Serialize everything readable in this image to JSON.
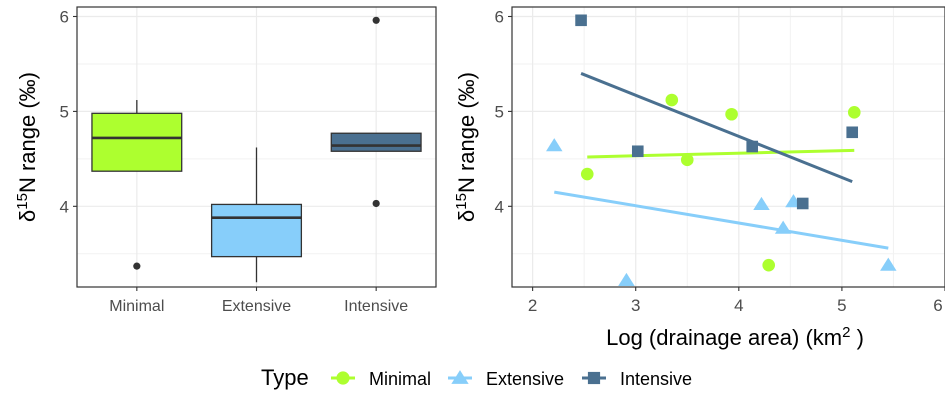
{
  "chart_data": [
    {
      "type": "box",
      "ylabel": "δ¹⁵N range (‰)",
      "ylim": [
        3.15,
        6.1
      ],
      "yticks": [
        4,
        5,
        6
      ],
      "categories": [
        "Minimal",
        "Extensive",
        "Intensive"
      ],
      "boxes": [
        {
          "category": "Minimal",
          "q1": 4.37,
          "median": 4.72,
          "q3": 4.98,
          "whisker_low": 4.37,
          "whisker_high": 5.12,
          "outliers": [
            3.37
          ],
          "color": "#adff2f"
        },
        {
          "category": "Extensive",
          "q1": 3.47,
          "median": 3.88,
          "q3": 4.02,
          "whisker_low": 3.2,
          "whisker_high": 4.62,
          "outliers": [],
          "color": "#87cefa"
        },
        {
          "category": "Intensive",
          "q1": 4.58,
          "median": 4.64,
          "q3": 4.77,
          "whisker_low": 4.58,
          "whisker_high": 4.77,
          "outliers": [
            5.96,
            4.03
          ],
          "color": "#4a7090"
        }
      ],
      "grid": true
    },
    {
      "type": "scatter",
      "xlabel": "Log (drainage area) (km",
      "xlabel_sup": "2",
      "xlabel_tail": " )",
      "ylabel": "δ¹⁵N range (‰)",
      "xlim": [
        1.8,
        6.0
      ],
      "ylim": [
        3.15,
        6.1
      ],
      "xticks": [
        2,
        3,
        4,
        5,
        6
      ],
      "yticks": [
        4,
        5,
        6
      ],
      "grid": true,
      "series": [
        {
          "name": "Minimal",
          "marker": "circle",
          "color": "#adff2f",
          "points": [
            [
              2.53,
              4.34
            ],
            [
              3.35,
              5.12
            ],
            [
              3.5,
              4.49
            ],
            [
              3.93,
              4.97
            ],
            [
              4.29,
              3.38
            ],
            [
              5.12,
              4.99
            ]
          ],
          "fit": [
            [
              2.53,
              4.52
            ],
            [
              5.12,
              4.59
            ]
          ]
        },
        {
          "name": "Extensive",
          "marker": "triangle",
          "color": "#87cefa",
          "points": [
            [
              2.21,
              4.64
            ],
            [
              2.91,
              3.22
            ],
            [
              4.22,
              4.02
            ],
            [
              4.43,
              3.77
            ],
            [
              4.53,
              4.05
            ],
            [
              5.45,
              3.38
            ]
          ],
          "fit": [
            [
              2.21,
              4.15
            ],
            [
              5.45,
              3.56
            ]
          ]
        },
        {
          "name": "Intensive",
          "marker": "square",
          "color": "#4a7090",
          "points": [
            [
              2.47,
              5.96
            ],
            [
              3.02,
              4.58
            ],
            [
              4.13,
              4.63
            ],
            [
              4.62,
              4.03
            ],
            [
              5.1,
              4.78
            ]
          ],
          "fit": [
            [
              2.47,
              5.4
            ],
            [
              5.1,
              4.26
            ]
          ]
        }
      ]
    }
  ],
  "legend": {
    "title": "Type",
    "position": "bottom",
    "items": [
      "Minimal",
      "Extensive",
      "Intensive"
    ]
  }
}
